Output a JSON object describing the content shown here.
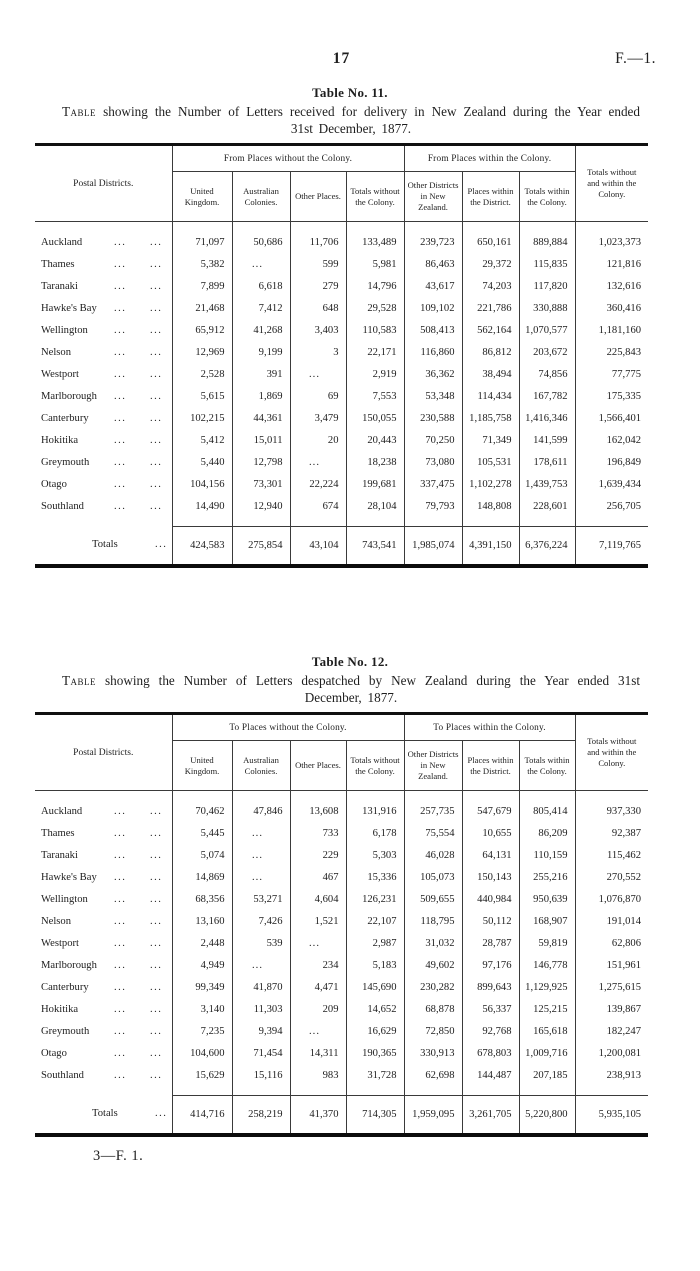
{
  "dots": "...",
  "page": {
    "number": "17",
    "ref": "F.—1.",
    "footer": "3—F. 1."
  },
  "tables": [
    {
      "caption": "Table No. 11.",
      "title_lead": "Table",
      "title_rest": " showing the Number of Letters received for delivery in New Zealand during the Year ended 31st December, 1877.",
      "corner_header": "Postal Districts.",
      "group_without": "From Places without the Colony.",
      "group_within": "From Places within the Colony.",
      "grand_total_header": "Totals without and within the Colony.",
      "col_headers": [
        "United Kingdom.",
        "Australian Colonies.",
        "Other Places.",
        "Totals without the Colony.",
        "Other Districts in New Zealand.",
        "Places within the District.",
        "Totals within the Colony."
      ],
      "rows": [
        {
          "district": "Auckland",
          "values": [
            "71,097",
            "50,686",
            "11,706",
            "133,489",
            "239,723",
            "650,161",
            "889,884",
            "1,023,373"
          ]
        },
        {
          "district": "Thames",
          "values": [
            "5,382",
            "...",
            "599",
            "5,981",
            "86,463",
            "29,372",
            "115,835",
            "121,816"
          ]
        },
        {
          "district": "Taranaki",
          "values": [
            "7,899",
            "6,618",
            "279",
            "14,796",
            "43,617",
            "74,203",
            "117,820",
            "132,616"
          ]
        },
        {
          "district": "Hawke's Bay",
          "values": [
            "21,468",
            "7,412",
            "648",
            "29,528",
            "109,102",
            "221,786",
            "330,888",
            "360,416"
          ]
        },
        {
          "district": "Wellington",
          "values": [
            "65,912",
            "41,268",
            "3,403",
            "110,583",
            "508,413",
            "562,164",
            "1,070,577",
            "1,181,160"
          ]
        },
        {
          "district": "Nelson",
          "values": [
            "12,969",
            "9,199",
            "3",
            "22,171",
            "116,860",
            "86,812",
            "203,672",
            "225,843"
          ]
        },
        {
          "district": "Westport",
          "values": [
            "2,528",
            "391",
            "...",
            "2,919",
            "36,362",
            "38,494",
            "74,856",
            "77,775"
          ]
        },
        {
          "district": "Marlborough",
          "values": [
            "5,615",
            "1,869",
            "69",
            "7,553",
            "53,348",
            "114,434",
            "167,782",
            "175,335"
          ]
        },
        {
          "district": "Canterbury",
          "values": [
            "102,215",
            "44,361",
            "3,479",
            "150,055",
            "230,588",
            "1,185,758",
            "1,416,346",
            "1,566,401"
          ]
        },
        {
          "district": "Hokitika",
          "values": [
            "5,412",
            "15,011",
            "20",
            "20,443",
            "70,250",
            "71,349",
            "141,599",
            "162,042"
          ]
        },
        {
          "district": "Greymouth",
          "values": [
            "5,440",
            "12,798",
            "...",
            "18,238",
            "73,080",
            "105,531",
            "178,611",
            "196,849"
          ]
        },
        {
          "district": "Otago",
          "values": [
            "104,156",
            "73,301",
            "22,224",
            "199,681",
            "337,475",
            "1,102,278",
            "1,439,753",
            "1,639,434"
          ]
        },
        {
          "district": "Southland",
          "values": [
            "14,490",
            "12,940",
            "674",
            "28,104",
            "79,793",
            "148,808",
            "228,601",
            "256,705"
          ]
        }
      ],
      "totals_label": "Totals",
      "totals": [
        "424,583",
        "275,854",
        "43,104",
        "743,541",
        "1,985,074",
        "4,391,150",
        "6,376,224",
        "7,119,765"
      ]
    },
    {
      "caption": "Table No. 12.",
      "title_lead": "Table",
      "title_rest": " showing the Number of Letters despatched by New Zealand during the Year ended 31st December, 1877.",
      "corner_header": "Postal Districts.",
      "group_without": "To Places without the Colony.",
      "group_within": "To Places within the Colony.",
      "grand_total_header": "Totals without and within the Colony.",
      "col_headers": [
        "United Kingdom.",
        "Australian Colonies.",
        "Other Places.",
        "Totals without the Colony.",
        "Other Districts in New Zealand.",
        "Places within the District.",
        "Totals within the Colony."
      ],
      "rows": [
        {
          "district": "Auckland",
          "values": [
            "70,462",
            "47,846",
            "13,608",
            "131,916",
            "257,735",
            "547,679",
            "805,414",
            "937,330"
          ]
        },
        {
          "district": "Thames",
          "values": [
            "5,445",
            "...",
            "733",
            "6,178",
            "75,554",
            "10,655",
            "86,209",
            "92,387"
          ]
        },
        {
          "district": "Taranaki",
          "values": [
            "5,074",
            "...",
            "229",
            "5,303",
            "46,028",
            "64,131",
            "110,159",
            "115,462"
          ]
        },
        {
          "district": "Hawke's Bay",
          "values": [
            "14,869",
            "...",
            "467",
            "15,336",
            "105,073",
            "150,143",
            "255,216",
            "270,552"
          ]
        },
        {
          "district": "Wellington",
          "values": [
            "68,356",
            "53,271",
            "4,604",
            "126,231",
            "509,655",
            "440,984",
            "950,639",
            "1,076,870"
          ]
        },
        {
          "district": "Nelson",
          "values": [
            "13,160",
            "7,426",
            "1,521",
            "22,107",
            "118,795",
            "50,112",
            "168,907",
            "191,014"
          ]
        },
        {
          "district": "Westport",
          "values": [
            "2,448",
            "539",
            "...",
            "2,987",
            "31,032",
            "28,787",
            "59,819",
            "62,806"
          ]
        },
        {
          "district": "Marlborough",
          "values": [
            "4,949",
            "...",
            "234",
            "5,183",
            "49,602",
            "97,176",
            "146,778",
            "151,961"
          ]
        },
        {
          "district": "Canterbury",
          "values": [
            "99,349",
            "41,870",
            "4,471",
            "145,690",
            "230,282",
            "899,643",
            "1,129,925",
            "1,275,615"
          ]
        },
        {
          "district": "Hokitika",
          "values": [
            "3,140",
            "11,303",
            "209",
            "14,652",
            "68,878",
            "56,337",
            "125,215",
            "139,867"
          ]
        },
        {
          "district": "Greymouth",
          "values": [
            "7,235",
            "9,394",
            "...",
            "16,629",
            "72,850",
            "92,768",
            "165,618",
            "182,247"
          ]
        },
        {
          "district": "Otago",
          "values": [
            "104,600",
            "71,454",
            "14,311",
            "190,365",
            "330,913",
            "678,803",
            "1,009,716",
            "1,200,081"
          ]
        },
        {
          "district": "Southland",
          "values": [
            "15,629",
            "15,116",
            "983",
            "31,728",
            "62,698",
            "144,487",
            "207,185",
            "238,913"
          ]
        }
      ],
      "totals_label": "Totals",
      "totals": [
        "414,716",
        "258,219",
        "41,370",
        "714,305",
        "1,959,095",
        "3,261,705",
        "5,220,800",
        "5,935,105"
      ]
    }
  ]
}
